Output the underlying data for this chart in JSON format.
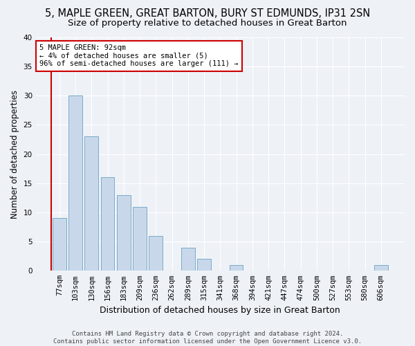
{
  "title_line1": "5, MAPLE GREEN, GREAT BARTON, BURY ST EDMUNDS, IP31 2SN",
  "title_line2": "Size of property relative to detached houses in Great Barton",
  "xlabel": "Distribution of detached houses by size in Great Barton",
  "ylabel": "Number of detached properties",
  "footnote": "Contains HM Land Registry data © Crown copyright and database right 2024.\nContains public sector information licensed under the Open Government Licence v3.0.",
  "categories": [
    "77sqm",
    "103sqm",
    "130sqm",
    "156sqm",
    "183sqm",
    "209sqm",
    "236sqm",
    "262sqm",
    "289sqm",
    "315sqm",
    "341sqm",
    "368sqm",
    "394sqm",
    "421sqm",
    "447sqm",
    "474sqm",
    "500sqm",
    "527sqm",
    "553sqm",
    "580sqm",
    "606sqm"
  ],
  "values": [
    9,
    30,
    23,
    16,
    13,
    11,
    6,
    0,
    4,
    2,
    0,
    1,
    0,
    0,
    0,
    0,
    0,
    0,
    0,
    0,
    1
  ],
  "bar_color": "#c8d8ea",
  "bar_edge_color": "#7aaac8",
  "ylim": [
    0,
    40
  ],
  "yticks": [
    0,
    5,
    10,
    15,
    20,
    25,
    30,
    35,
    40
  ],
  "annotation_box_text": "5 MAPLE GREEN: 92sqm\n← 4% of detached houses are smaller (5)\n96% of semi-detached houses are larger (111) →",
  "annotation_box_color": "#cc0000",
  "red_line_x": -0.5,
  "background_color": "#eef2f7",
  "grid_color": "#ffffff",
  "title_fontsize": 10.5,
  "subtitle_fontsize": 9.5,
  "xlabel_fontsize": 9,
  "ylabel_fontsize": 8.5,
  "tick_fontsize": 7.5,
  "annotation_fontsize": 7.5,
  "footnote_fontsize": 6.5
}
